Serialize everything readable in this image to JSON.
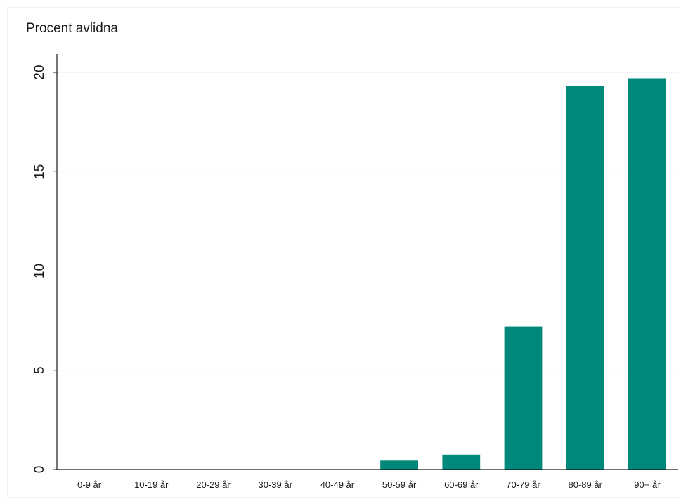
{
  "chart_data": {
    "type": "bar",
    "title": "Procent avlidna",
    "xlabel": "",
    "ylabel": "",
    "categories": [
      "0-9 år",
      "10-19 år",
      "20-29 år",
      "30-39 år",
      "40-49 år",
      "50-59 år",
      "60-69 år",
      "70-79 år",
      "80-89 år",
      "90+ år"
    ],
    "values": [
      0,
      0,
      0,
      0,
      0,
      0.45,
      0.75,
      7.2,
      19.3,
      19.7
    ],
    "ylim": [
      0,
      20
    ],
    "yticks": [
      0,
      5,
      10,
      15,
      20
    ],
    "grid": true,
    "bar_color": "#00897b",
    "grid_color": "#e6eef2"
  }
}
